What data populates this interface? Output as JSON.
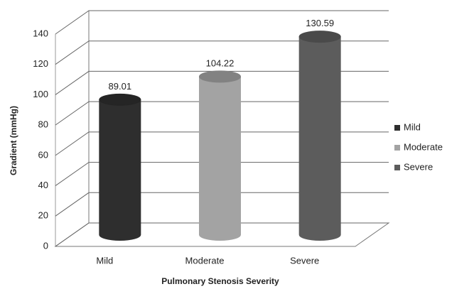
{
  "chart_data": {
    "type": "bar3d",
    "x_label": "Pulmonary Stenosis Severity",
    "y_label": "Gradient (mmHg)",
    "categories": [
      "Mild",
      "Moderate",
      "Severe"
    ],
    "values": [
      89.01,
      104.22,
      130.59
    ],
    "colors": [
      "#2e2e2e",
      "#a3a3a3",
      "#5c5c5c"
    ],
    "ylim": [
      0,
      140
    ],
    "yticks": [
      0,
      20,
      40,
      60,
      80,
      100,
      120,
      140
    ],
    "grid": true,
    "legend": "right"
  }
}
